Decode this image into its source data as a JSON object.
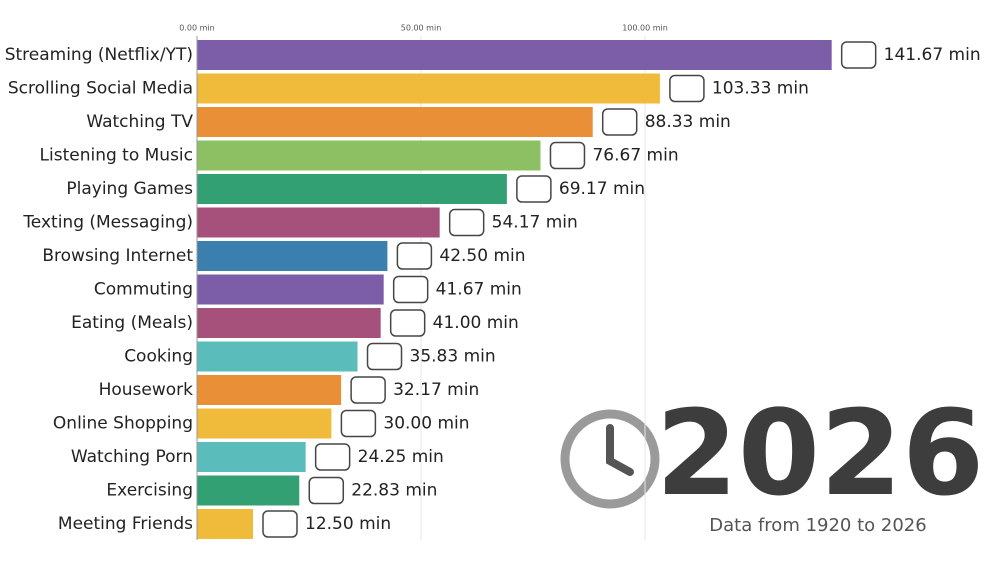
{
  "chart_data": {
    "type": "barh",
    "annotations": [
      "2026",
      "Data from 1920 to 2026"
    ],
    "categories": [
      "Streaming (Netflix/YT)",
      "Scrolling Social Media",
      "Watching TV",
      "Listening to Music",
      "Playing Games",
      "Texting (Messaging)",
      "Browsing Internet",
      "Commuting",
      "Eating (Meals)",
      "Cooking",
      "Housework",
      "Online Shopping",
      "Watching Porn",
      "Exercising",
      "Meeting Friends"
    ],
    "values": [
      141.67,
      103.33,
      88.33,
      76.67,
      69.17,
      54.17,
      42.5,
      41.67,
      41.0,
      35.83,
      32.17,
      30.0,
      24.25,
      22.83,
      12.5
    ],
    "value_labels": [
      "141.67 min",
      "103.33 min",
      "88.33 min",
      "76.67 min",
      "69.17 min",
      "54.17 min",
      "42.50 min",
      "41.67 min",
      "41.00 min",
      "35.83 min",
      "32.17 min",
      "30.00 min",
      "24.25 min",
      "22.83 min",
      "12.50 min"
    ],
    "colors": [
      "#7b5ea7",
      "#f0bb3b",
      "#e88f38",
      "#8cc063",
      "#33a073",
      "#a6517c",
      "#3b7fae",
      "#7b5ea7",
      "#a6517c",
      "#5bbcbc",
      "#e88f38",
      "#f0bb3b",
      "#5bbcbc",
      "#33a073",
      "#f0bb3b"
    ],
    "xlim": [
      0,
      150
    ],
    "xticks": [
      {
        "value": 0,
        "label": "0.00 min"
      },
      {
        "value": 50,
        "label": "50.00 min"
      },
      {
        "value": 100,
        "label": "100.00 min"
      }
    ],
    "grid": true
  }
}
